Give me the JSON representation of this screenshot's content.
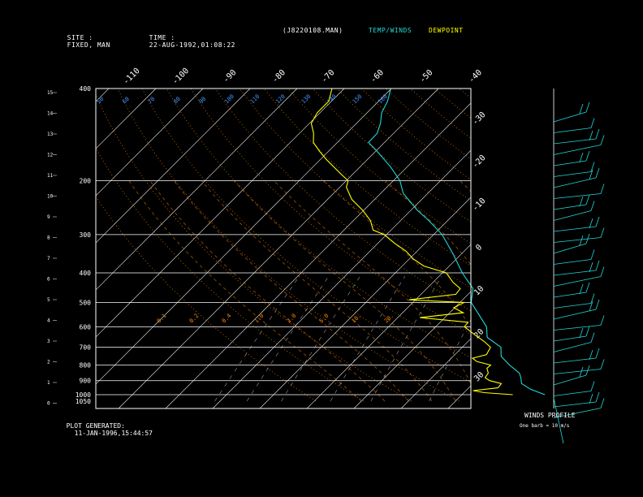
{
  "header": {
    "site_label": "SITE :",
    "site_value": "FIXED, MAN",
    "time_label": "TIME :",
    "time_value": "22-AUG-1992,01:08:22",
    "file": "(J8220108.MAN)",
    "temp_legend": "TEMP/WINDS",
    "dew_legend": "DEWPOINT"
  },
  "footer": {
    "plot_generated_label": "PLOT GENERATED:",
    "plot_generated_value": "11-JAN-1996,15:44:57",
    "winds_title": "WINDS PROFILE",
    "winds_note": "One barb = 10 m/s"
  },
  "colors": {
    "temp": "#22d8d8",
    "dewpoint": "#ffff00",
    "isobar": "#ffffff",
    "isotherm": "#ffffff",
    "dry_adiabat": "#ff8800",
    "moist_adiabat": "#ff8800",
    "mixing_ratio": "#6699ff",
    "text_blue": "#4499ff",
    "text_orange": "#ff8800"
  },
  "chart_data": {
    "type": "line",
    "pressure_levels": [
      400,
      200,
      300,
      400,
      500,
      600,
      700,
      800,
      900,
      1000,
      1050
    ],
    "pressure_labels": [
      "400",
      "200",
      "300",
      "400",
      "500",
      "600",
      "700",
      "800",
      "900",
      "1000",
      "1050"
    ],
    "height_ticks": [
      "15",
      "14",
      "13",
      "12",
      "11",
      "10",
      "9",
      "8",
      "7",
      "6",
      "5",
      "4",
      "3",
      "2",
      "1",
      "0"
    ],
    "top_temp_ticks": [
      "-110",
      "-100",
      "-90",
      "-80",
      "-70",
      "-60",
      "-50",
      "-40"
    ],
    "right_temp_ticks": [
      "-30",
      "-20",
      "-10",
      "0",
      "10",
      "20",
      "30"
    ],
    "mixing_ratio_labels": [
      "0.1",
      "0.2",
      "0.4",
      "1.0",
      "2.0",
      "5.0",
      "10.",
      "20."
    ],
    "potential_temp_labels": [
      "50",
      "60",
      "70",
      "80",
      "90",
      "100",
      "110",
      "120",
      "130",
      "140",
      "150",
      "160"
    ],
    "series": [
      {
        "name": "TEMP/WINDS",
        "points": [
          [
            1000,
            27.6
          ],
          [
            960,
            23.4
          ],
          [
            920,
            20.3
          ],
          [
            880,
            18.9
          ],
          [
            850,
            17.6
          ],
          [
            800,
            13.8
          ],
          [
            750,
            10.2
          ],
          [
            700,
            8.2
          ],
          [
            650,
            3.2
          ],
          [
            600,
            0.8
          ],
          [
            550,
            -3.2
          ],
          [
            500,
            -7.6
          ],
          [
            450,
            -10.2
          ],
          [
            400,
            -15.8
          ],
          [
            350,
            -21.4
          ],
          [
            300,
            -28.2
          ],
          [
            270,
            -34.0
          ],
          [
            250,
            -38.6
          ],
          [
            220,
            -45.2
          ],
          [
            200,
            -48.6
          ],
          [
            180,
            -53.6
          ],
          [
            160,
            -59.8
          ],
          [
            150,
            -63.4
          ],
          [
            140,
            -63.5
          ],
          [
            130,
            -64.9
          ],
          [
            120,
            -66.9
          ],
          [
            110,
            -68.1
          ],
          [
            100,
            -70.1
          ]
        ]
      },
      {
        "name": "DEWPOINT",
        "points": [
          [
            1000,
            20.8
          ],
          [
            985,
            14.3
          ],
          [
            970,
            11.5
          ],
          [
            950,
            16.2
          ],
          [
            920,
            16.0
          ],
          [
            900,
            12.9
          ],
          [
            880,
            11.3
          ],
          [
            850,
            11.0
          ],
          [
            820,
            9.7
          ],
          [
            800,
            9.8
          ],
          [
            780,
            6.2
          ],
          [
            760,
            4.5
          ],
          [
            740,
            6.7
          ],
          [
            700,
            6.0
          ],
          [
            670,
            3.4
          ],
          [
            640,
            0.3
          ],
          [
            600,
            -3.9
          ],
          [
            580,
            -4.1
          ],
          [
            560,
            -15.3
          ],
          [
            540,
            -7.1
          ],
          [
            520,
            -10.2
          ],
          [
            500,
            -9.1
          ],
          [
            490,
            -21.4
          ],
          [
            470,
            -12.6
          ],
          [
            450,
            -12.9
          ],
          [
            430,
            -15.7
          ],
          [
            400,
            -19.2
          ],
          [
            380,
            -25.4
          ],
          [
            360,
            -29.2
          ],
          [
            340,
            -32.3
          ],
          [
            320,
            -36.5
          ],
          [
            300,
            -40.5
          ],
          [
            290,
            -43.8
          ],
          [
            270,
            -46.4
          ],
          [
            250,
            -50.2
          ],
          [
            230,
            -54.9
          ],
          [
            210,
            -58.6
          ],
          [
            200,
            -59.6
          ],
          [
            190,
            -62.6
          ],
          [
            170,
            -68.9
          ],
          [
            160,
            -72.0
          ],
          [
            150,
            -75.1
          ],
          [
            140,
            -77.0
          ],
          [
            130,
            -79.6
          ],
          [
            120,
            -80.6
          ],
          [
            110,
            -80.6
          ],
          [
            100,
            -82.6
          ]
        ]
      }
    ]
  }
}
